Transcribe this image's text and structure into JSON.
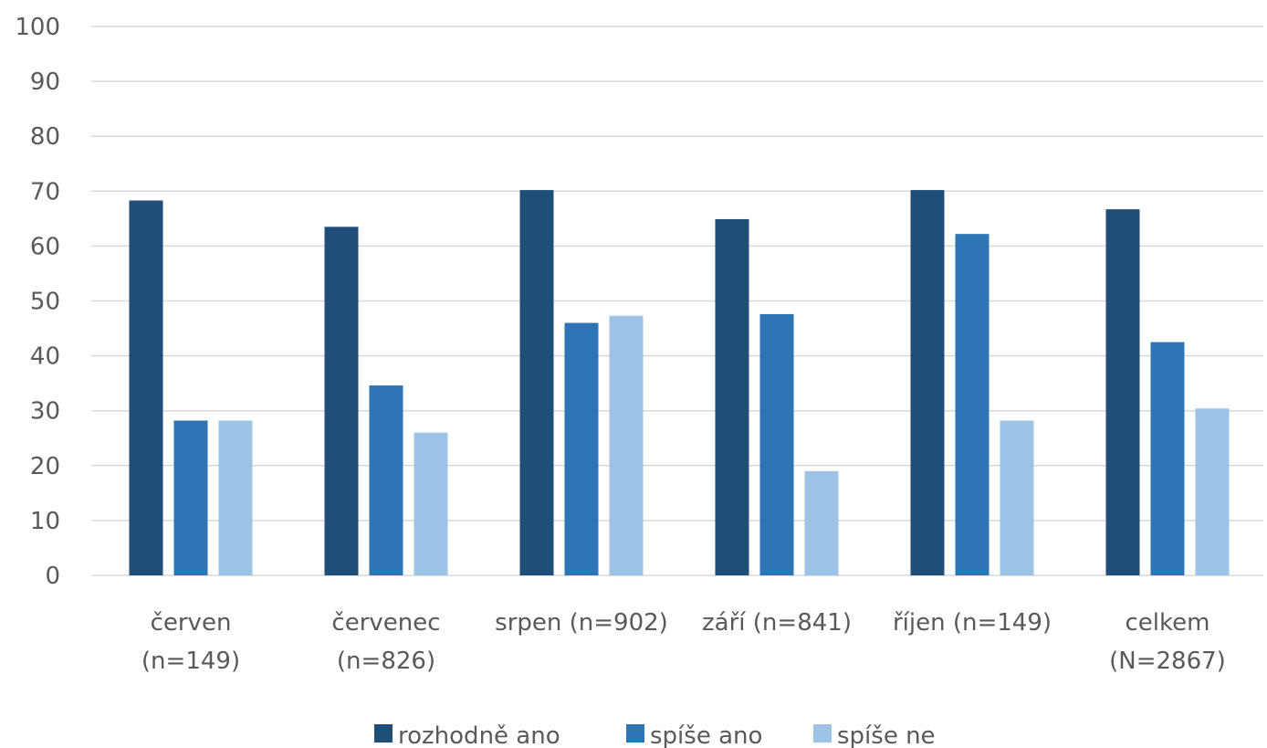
{
  "chart_data": {
    "type": "bar",
    "categories": [
      [
        "červen",
        "(n=149)"
      ],
      [
        "červenec",
        "(n=826)"
      ],
      [
        "srpen (n=902)"
      ],
      [
        "září (n=841)"
      ],
      [
        "říjen (n=149)"
      ],
      [
        "celkem",
        "(N=2867)"
      ]
    ],
    "series": [
      {
        "name": "rozhodně ano",
        "color": "#1f4e79",
        "values": [
          68.3,
          63.5,
          70.2,
          64.9,
          70.2,
          66.7
        ]
      },
      {
        "name": "spíše ano",
        "color": "#2e75b6",
        "values": [
          28.2,
          34.6,
          46.0,
          47.6,
          62.2,
          42.5
        ]
      },
      {
        "name": "spíše ne",
        "color": "#9dc3e6",
        "values": [
          28.2,
          26.0,
          47.3,
          19.0,
          28.2,
          30.4
        ]
      }
    ],
    "ylim": [
      0,
      100
    ],
    "yticks": [
      "0",
      "10",
      "20",
      "30",
      "40",
      "50",
      "60",
      "70",
      "80",
      "90",
      "100"
    ],
    "grid": true,
    "legend_position": "bottom"
  }
}
